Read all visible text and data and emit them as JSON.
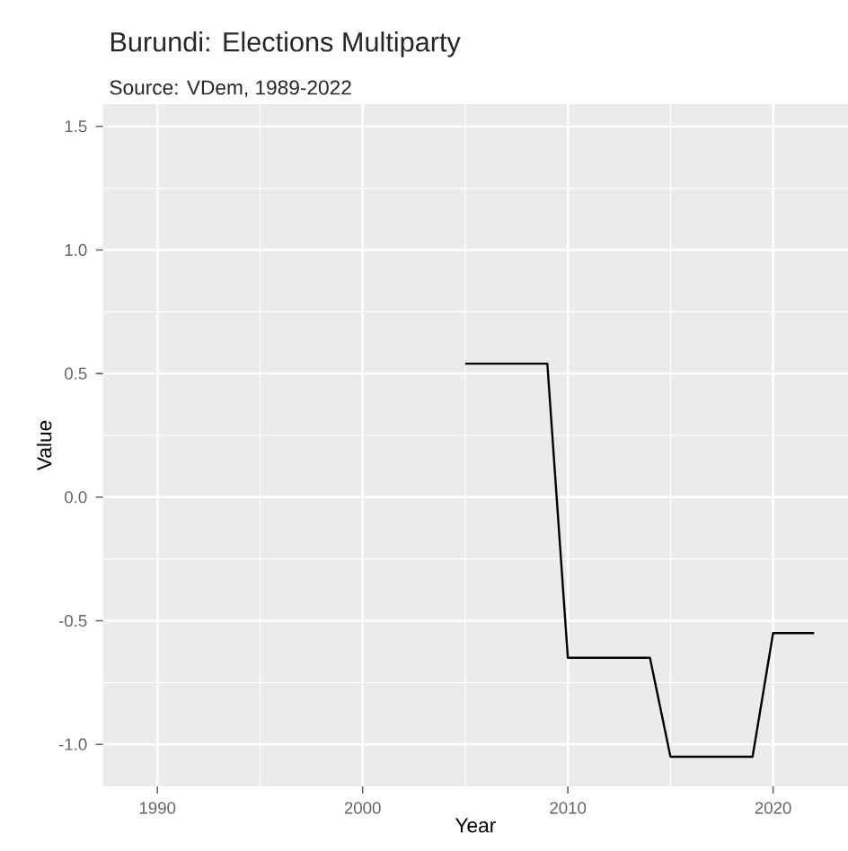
{
  "chart_data": {
    "type": "line",
    "title": "Burundi: Elections Multiparty",
    "subtitle": "Source: VDem, 1989-2022",
    "xlabel": "Year",
    "ylabel": "Value",
    "x": [
      2005,
      2006,
      2007,
      2008,
      2009,
      2010,
      2011,
      2012,
      2013,
      2014,
      2015,
      2016,
      2017,
      2018,
      2019,
      2020,
      2021,
      2022
    ],
    "series": [
      {
        "color": "#000000",
        "values": [
          0.54,
          0.54,
          0.54,
          0.54,
          0.54,
          -0.65,
          -0.65,
          -0.65,
          -0.65,
          -0.65,
          -1.05,
          -1.05,
          -1.05,
          -1.05,
          -1.05,
          -0.55,
          -0.55,
          -0.55
        ]
      }
    ],
    "xlim": [
      1987.35,
      2023.65
    ],
    "ylim": [
      -1.17,
      1.59
    ],
    "xticks": [
      1990,
      2000,
      2010,
      2020
    ],
    "yticks": [
      {
        "value": -1.0,
        "label": "-1.0"
      },
      {
        "value": -0.5,
        "label": "-0.5"
      },
      {
        "value": 0.0,
        "label": "0.0"
      },
      {
        "value": 0.5,
        "label": "0.5"
      },
      {
        "value": 1.0,
        "label": "1.0"
      },
      {
        "value": 1.5,
        "label": "1.5"
      }
    ],
    "grid": true,
    "marker": "none",
    "line_style": "solid"
  }
}
